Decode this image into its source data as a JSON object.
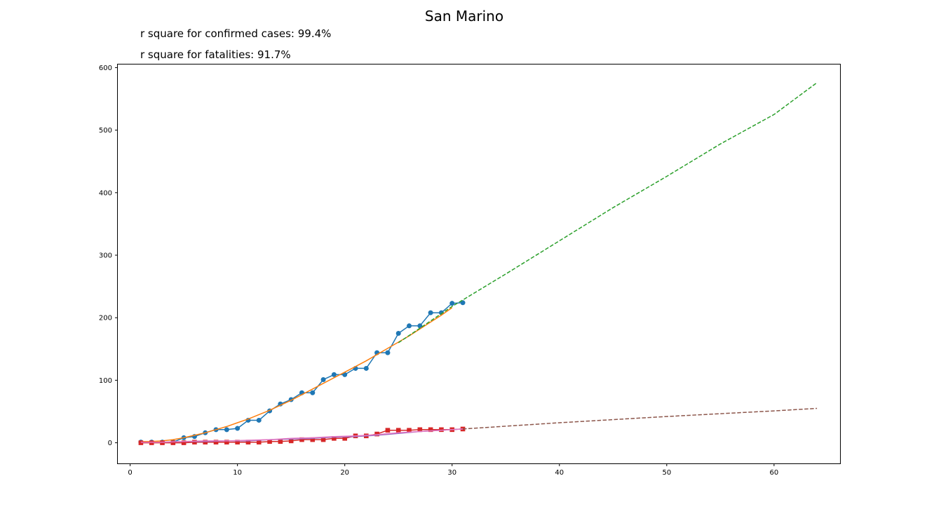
{
  "chart_data": {
    "type": "line",
    "title": "San Marino",
    "annotations": [
      "r square for confirmed cases: 99.4%",
      "r square for fatalities: 91.7%"
    ],
    "xlim": [
      -1.15,
      66.15
    ],
    "ylim": [
      -33,
      605
    ],
    "xticks": [
      0,
      10,
      20,
      30,
      40,
      50,
      60
    ],
    "yticks": [
      0,
      100,
      200,
      300,
      400,
      500,
      600
    ],
    "grid": false,
    "colors": {
      "confirmed": "#1f77b4",
      "confirmed_fit": "#ff7f0e",
      "confirmed_projection": "#2ca02c",
      "fatalities": "#d62728",
      "fatalities_fit": "#9467bd",
      "fatalities_fit_overlay": "#e377c2",
      "fatalities_projection": "#8c564b"
    },
    "series": [
      {
        "key": "confirmed",
        "style": "solid",
        "marker": "circle",
        "x": [
          1,
          2,
          3,
          4,
          5,
          6,
          7,
          8,
          9,
          10,
          11,
          12,
          13,
          14,
          15,
          16,
          17,
          18,
          19,
          20,
          21,
          22,
          23,
          24,
          25,
          26,
          27,
          28,
          29,
          30,
          31
        ],
        "y": [
          1,
          1,
          1,
          1,
          8,
          10,
          16,
          21,
          21,
          23,
          36,
          36,
          51,
          62,
          69,
          80,
          80,
          101,
          109,
          109,
          119,
          119,
          144,
          144,
          175,
          187,
          187,
          208,
          208,
          223,
          224
        ]
      },
      {
        "key": "confirmed_fit",
        "style": "solid",
        "marker": "none",
        "x": [
          1,
          2,
          3,
          4,
          5,
          6,
          7,
          8,
          9,
          10,
          11,
          12,
          13,
          14,
          15,
          16,
          17,
          18,
          19,
          20,
          21,
          22,
          23,
          24,
          25,
          26,
          27,
          28,
          29,
          30
        ],
        "y": [
          2,
          2,
          3,
          5,
          8,
          12,
          16,
          21,
          26,
          32,
          38,
          45,
          52,
          60,
          68,
          77,
          86,
          95,
          104,
          113,
          122,
          131,
          141,
          151,
          161,
          171,
          182,
          193,
          204,
          216
        ]
      },
      {
        "key": "confirmed_projection",
        "style": "dashed",
        "marker": "none",
        "x": [
          25,
          30,
          35,
          40,
          45,
          50,
          55,
          60,
          64
        ],
        "y": [
          160,
          218,
          270,
          323,
          376,
          426,
          478,
          525,
          576
        ]
      },
      {
        "key": "fatalities",
        "style": "solid",
        "marker": "square",
        "x": [
          1,
          2,
          3,
          4,
          5,
          6,
          7,
          8,
          9,
          10,
          11,
          12,
          13,
          14,
          15,
          16,
          17,
          18,
          19,
          20,
          21,
          22,
          23,
          24,
          25,
          26,
          27,
          28,
          29,
          30,
          31
        ],
        "y": [
          0,
          0,
          0,
          0,
          0,
          1,
          1,
          1,
          1,
          1,
          1,
          1,
          2,
          2,
          3,
          5,
          5,
          5,
          7,
          7,
          11,
          11,
          14,
          20,
          20,
          20,
          21,
          21,
          21,
          21,
          22
        ]
      },
      {
        "key": "fatalities_fit",
        "style": "solid",
        "marker": "none",
        "x": [
          1,
          3,
          5,
          7,
          9,
          11,
          13,
          15,
          17,
          19,
          21,
          23,
          25,
          27,
          29,
          31
        ],
        "y": [
          1,
          1,
          2,
          2,
          3,
          3,
          5,
          6,
          7,
          9,
          10,
          12,
          15,
          18,
          20,
          22
        ]
      },
      {
        "key": "fatalities_fit_overlay",
        "style": "solid",
        "marker": "none",
        "x": [
          1,
          3,
          5,
          7,
          9,
          11,
          13,
          15,
          17,
          19,
          21,
          23,
          25,
          27,
          29,
          31
        ],
        "y": [
          1,
          1,
          2,
          3,
          3,
          4,
          5,
          7,
          8,
          10,
          11,
          13,
          16,
          18,
          20,
          22
        ]
      },
      {
        "key": "fatalities_projection",
        "style": "dashed",
        "marker": "none",
        "x": [
          31,
          40,
          50,
          60,
          64
        ],
        "y": [
          22,
          32,
          42,
          51,
          55
        ]
      }
    ]
  }
}
